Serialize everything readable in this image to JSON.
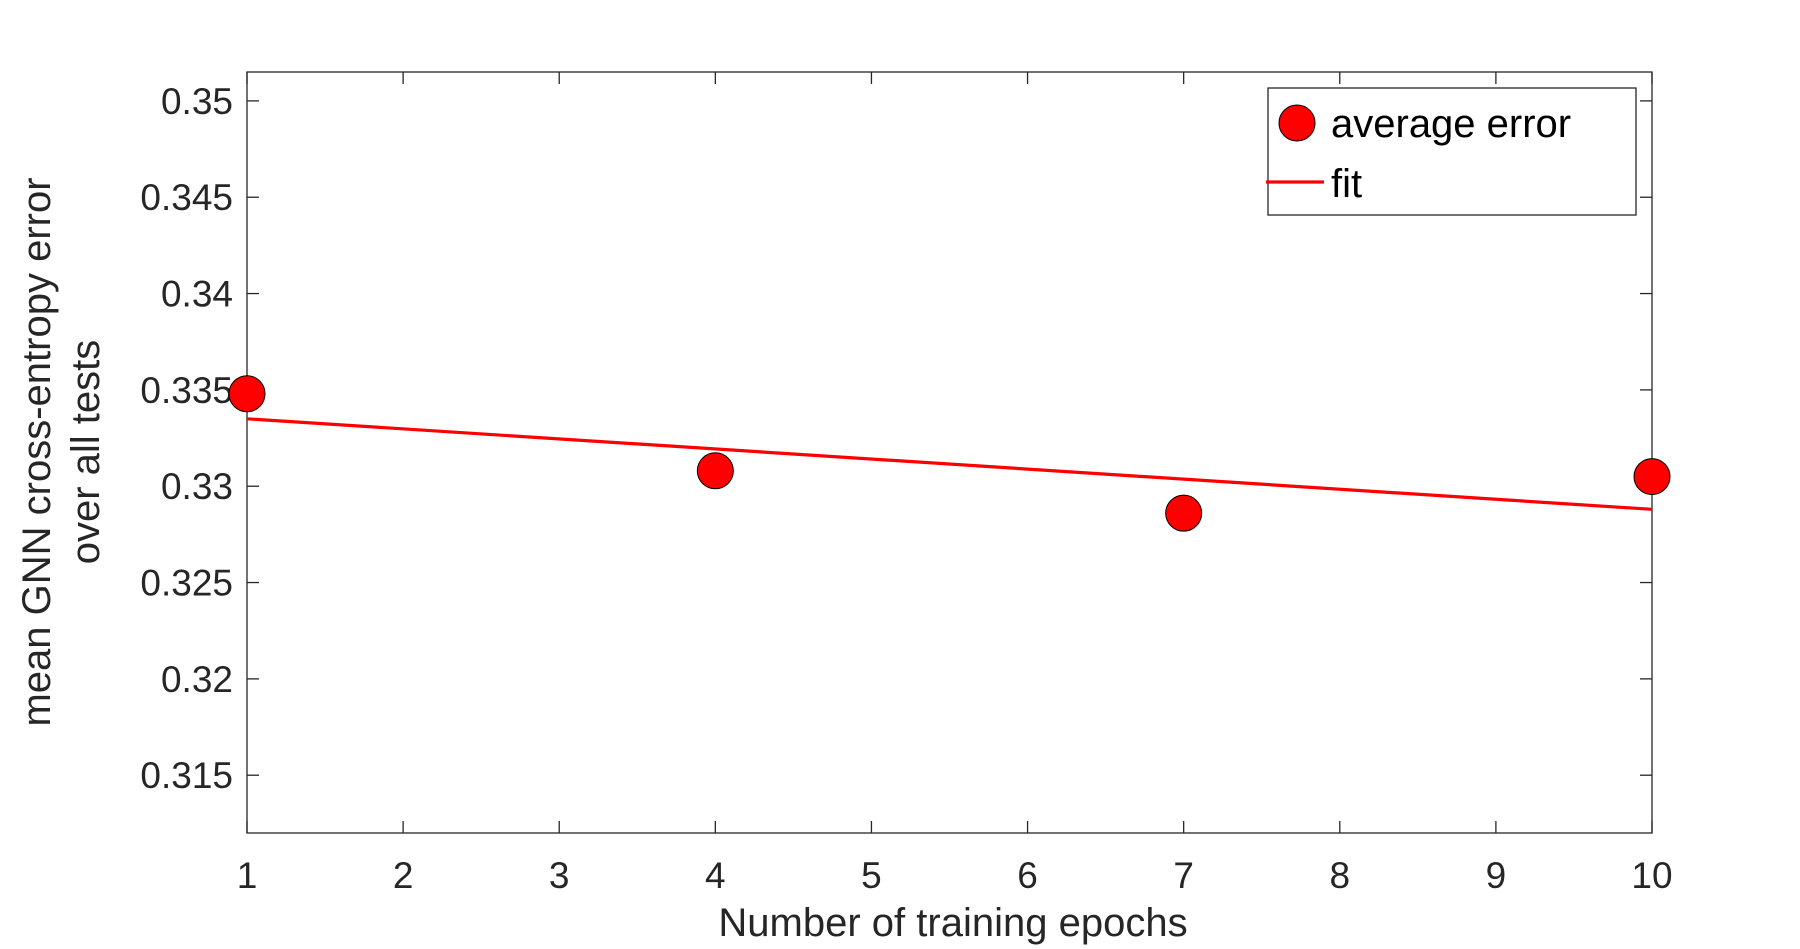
{
  "chart_data": {
    "type": "scatter",
    "xlabel": "Number of training epochs",
    "ylabel_lines": [
      "mean GNN cross-entropy error",
      "over all tests"
    ],
    "xlim": [
      1,
      10
    ],
    "ylim": [
      0.312,
      0.3515
    ],
    "xticks": [
      1,
      2,
      3,
      4,
      5,
      6,
      7,
      8,
      9,
      10
    ],
    "xtick_labels": [
      "1",
      "2",
      "3",
      "4",
      "5",
      "6",
      "7",
      "8",
      "9",
      "10"
    ],
    "yticks": [
      0.315,
      0.32,
      0.325,
      0.33,
      0.335,
      0.34,
      0.345,
      0.35
    ],
    "ytick_labels": [
      "0.315",
      "0.32",
      "0.325",
      "0.33",
      "0.335",
      "0.34",
      "0.345",
      "0.35"
    ],
    "grid": false,
    "legend_position": "top-right",
    "series": [
      {
        "name": "average error",
        "kind": "scatter",
        "color": "#ff0000",
        "x": [
          1,
          4,
          7,
          10
        ],
        "y": [
          0.3348,
          0.3308,
          0.3286,
          0.3305
        ]
      },
      {
        "name": "fit",
        "kind": "line",
        "color": "#ff0000",
        "x": [
          1,
          10
        ],
        "y": [
          0.3335,
          0.3288
        ]
      }
    ]
  }
}
